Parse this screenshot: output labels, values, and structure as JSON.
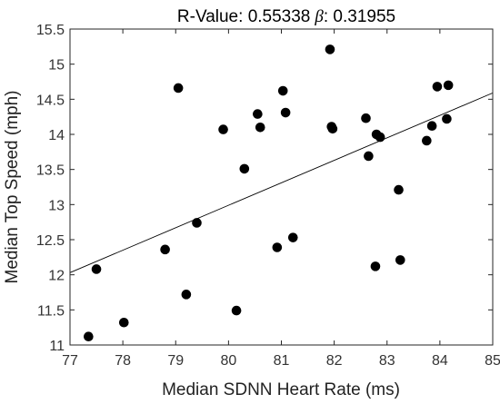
{
  "chart_data": {
    "type": "scatter",
    "title": {
      "prefix": "R-Value: ",
      "r_value": "0.55338",
      "beta_symbol": "β",
      "beta_suffix": ": ",
      "beta_value": "0.31955"
    },
    "xlabel": "Median SDNN Heart Rate (ms)",
    "ylabel": "Median Top Speed (mph)",
    "xlim": [
      77,
      85
    ],
    "ylim": [
      11,
      15.5
    ],
    "xticks": [
      "77",
      "78",
      "79",
      "80",
      "81",
      "82",
      "83",
      "84",
      "85"
    ],
    "yticks": [
      "11",
      "11.5",
      "12",
      "12.5",
      "13",
      "13.5",
      "14",
      "14.5",
      "15",
      "15.5"
    ],
    "grid": false,
    "points": [
      {
        "x": 77.35,
        "y": 11.12
      },
      {
        "x": 77.5,
        "y": 12.08
      },
      {
        "x": 78.02,
        "y": 11.32
      },
      {
        "x": 78.8,
        "y": 12.36
      },
      {
        "x": 79.05,
        "y": 14.66
      },
      {
        "x": 79.2,
        "y": 11.72
      },
      {
        "x": 79.4,
        "y": 12.74
      },
      {
        "x": 79.9,
        "y": 14.07
      },
      {
        "x": 80.15,
        "y": 11.49
      },
      {
        "x": 80.3,
        "y": 13.51
      },
      {
        "x": 80.55,
        "y": 14.29
      },
      {
        "x": 80.6,
        "y": 14.1
      },
      {
        "x": 80.92,
        "y": 12.39
      },
      {
        "x": 81.03,
        "y": 14.62
      },
      {
        "x": 81.08,
        "y": 14.31
      },
      {
        "x": 81.22,
        "y": 12.53
      },
      {
        "x": 81.92,
        "y": 15.21
      },
      {
        "x": 81.95,
        "y": 14.11
      },
      {
        "x": 81.97,
        "y": 14.08
      },
      {
        "x": 82.6,
        "y": 14.23
      },
      {
        "x": 82.65,
        "y": 13.69
      },
      {
        "x": 82.78,
        "y": 12.12
      },
      {
        "x": 82.8,
        "y": 14.0
      },
      {
        "x": 82.87,
        "y": 13.96
      },
      {
        "x": 83.22,
        "y": 13.21
      },
      {
        "x": 83.25,
        "y": 12.21
      },
      {
        "x": 83.75,
        "y": 13.91
      },
      {
        "x": 83.85,
        "y": 14.12
      },
      {
        "x": 83.95,
        "y": 14.68
      },
      {
        "x": 84.13,
        "y": 14.22
      },
      {
        "x": 84.16,
        "y": 14.7
      }
    ],
    "fit_line": {
      "x": [
        77,
        85
      ],
      "y": [
        12.03,
        14.59
      ]
    },
    "colors": {
      "marker": "#000000",
      "fit_line": "#000000",
      "axes": "#262626"
    }
  }
}
